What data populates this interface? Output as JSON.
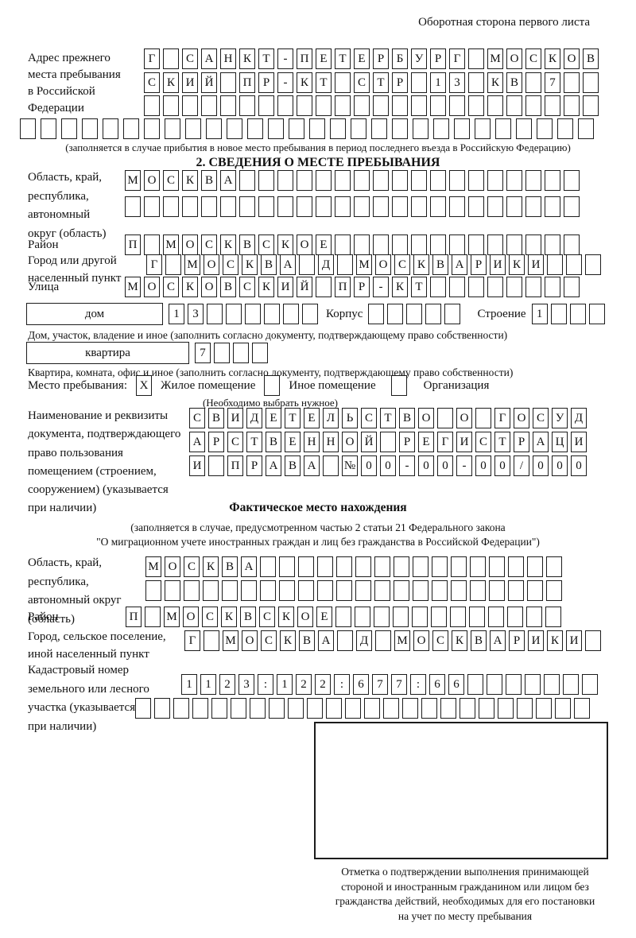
{
  "header": {
    "note": "Оборотная сторона первого листа"
  },
  "prev_address": {
    "label_lines": [
      "Адрес прежнего",
      "места пребывания",
      "в Российской",
      "Федерации"
    ],
    "row1": {
      "text": "Г САНКТ-ПЕТЕРБУРГ МОСКОВ",
      "len": 24
    },
    "row2": {
      "text": "СКИЙ ПР-КТ СТР 13 КВ 7",
      "len": 24
    },
    "row3": {
      "text": "",
      "len": 24
    },
    "row4": {
      "text": "",
      "len": 28
    },
    "note": "(заполняется в случае прибытия в новое место пребывания в период последнего въезда в Российскую Федерацию)"
  },
  "section2": {
    "title": "2. СВЕДЕНИЯ О МЕСТЕ ПРЕБЫВАНИЯ",
    "oblast_label_lines": [
      "Область, край,",
      "республика,",
      "автономный",
      "округ (область)"
    ],
    "oblast_row1": {
      "text": "МОСКВА",
      "len": 24
    },
    "oblast_row2": {
      "text": "",
      "len": 24
    },
    "rayon_label": "Район",
    "rayon_row": {
      "text": "П МОСКВСКОЕ",
      "len": 24
    },
    "gorod_label_lines": [
      "Город или другой",
      "населенный пункт"
    ],
    "gorod_row": {
      "text": "Г МОСКВА Д МОСКВАРИКИ",
      "len": 24
    },
    "ulitsa_label": "Улица",
    "ulitsa_row": {
      "text": "МОСКОВСКИЙ ПР-КТ",
      "len": 24
    },
    "dom": {
      "box_label": "дом",
      "cells": {
        "text": "13",
        "len": 8
      },
      "korpus_label": "Корпус",
      "korpus_cells": {
        "text": "",
        "len": 5
      },
      "stroenie_label": "Строение",
      "stroenie_cells": {
        "text": "1",
        "len": 4
      }
    },
    "dom_note": "Дом, участок, владение и иное (заполнить согласно документу, подтверждающему право собственности)",
    "kvartira": {
      "box_label": "квартира",
      "cells": {
        "text": "7",
        "len": 4
      }
    },
    "kvartira_note": "Квартира, комната, офис и иное (заполнить согласно документу, подтверждающему право собственности)",
    "mesto": {
      "label": "Место пребывания:",
      "zhiloe_box": {
        "text": "X",
        "len": 1
      },
      "zhiloe_label": "Жилое помещение",
      "inoe_box": {
        "text": "",
        "len": 1
      },
      "inoe_label": "Иное помещение",
      "org_box": {
        "text": "",
        "len": 1
      },
      "org_label": "Организация",
      "choose_note": "(Необходимо выбрать нужное)"
    },
    "doc_label_lines": [
      "Наименование и реквизиты",
      "документа, подтверждающего",
      "право пользования",
      "помещением (строением,",
      "сооружением) (указывается",
      "при наличии)"
    ],
    "doc_row1": {
      "text": "СВИДЕТЕЛЬСТВО О ГОСУД",
      "len": 21
    },
    "doc_row2": {
      "text": "АРСТВЕННОЙ РЕГИСТРАЦИ",
      "len": 21
    },
    "doc_row3": {
      "text": "И ПРАВА №00-00-00/000",
      "len": 21
    }
  },
  "fact": {
    "title": "Фактическое место нахождения",
    "note1": "(заполняется в случае, предусмотренном частью 2 статьи 21 Федерального закона",
    "note2": "\"О миграционном учете иностранных граждан и лиц без гражданства в Российской Федерации\")",
    "oblast_label_lines": [
      "Область, край,",
      "республика,",
      "автономный округ",
      "(область)"
    ],
    "oblast_row1": {
      "text": "МОСКВА",
      "len": 22
    },
    "oblast_row2": {
      "text": "",
      "len": 22
    },
    "rayon_label": "Район",
    "rayon_row": {
      "text": "П МОСКВСКОЕ",
      "len": 23
    },
    "gorod_label_lines": [
      "Город, сельское поселение,",
      "иной населенный пункт"
    ],
    "gorod_row": {
      "text": "Г МОСКВА Д МОСКВАРИКИ",
      "len": 22
    },
    "kadastr_label_lines": [
      "Кадастровый номер",
      "земельного или лесного",
      "участка (указывается",
      "при наличии)"
    ],
    "kadastr_row1": {
      "text": "1123:122:677:66",
      "len": 22
    },
    "kadastr_row2": {
      "text": "",
      "len": 24
    },
    "stamp_note_lines": [
      "Отметка о подтверждении выполнения принимающей",
      "стороной и иностранным гражданином или лицом без",
      "гражданства действий, необходимых для его постановки",
      "на учет по месту пребывания"
    ]
  }
}
